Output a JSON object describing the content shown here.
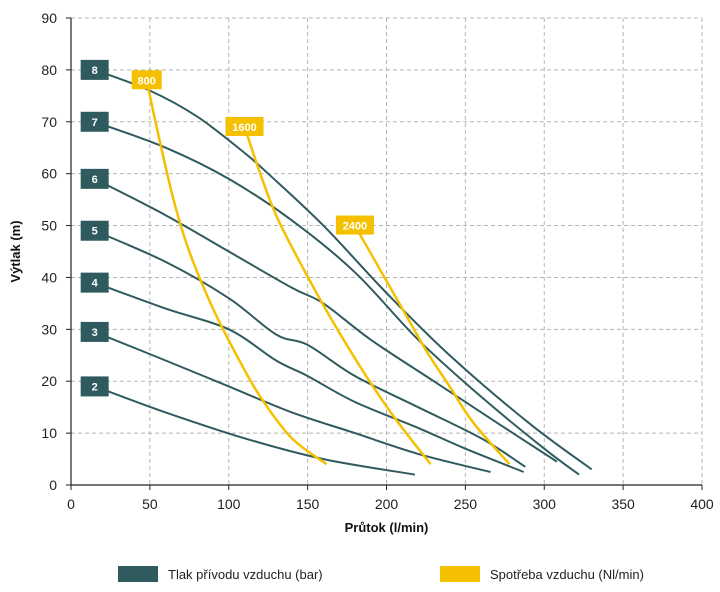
{
  "chart_data": {
    "type": "line",
    "xlabel": "Průtok (l/min)",
    "ylabel": "Výtlak (m)",
    "xlim": [
      0,
      400
    ],
    "ylim": [
      0,
      90
    ],
    "x_ticks": [
      0,
      50,
      100,
      150,
      200,
      250,
      300,
      350,
      400
    ],
    "y_ticks": [
      0,
      10,
      20,
      30,
      40,
      50,
      60,
      70,
      80,
      90
    ],
    "grid": "dashed",
    "colors": {
      "pressure": "#2f5b5e",
      "consumption": "#f5c000",
      "axis": "#222222",
      "grid": "#b5b5b5"
    },
    "legend": [
      {
        "label": "Tlak přívodu vzduchu (bar)",
        "color": "#2f5b5e"
      },
      {
        "label": "Spotřeba vzduchu (Nl/min)",
        "color": "#f5c000"
      }
    ],
    "pressure_series": [
      {
        "name": "2",
        "points": [
          [
            15,
            19
          ],
          [
            60,
            14
          ],
          [
            110,
            9
          ],
          [
            160,
            5
          ],
          [
            218,
            2
          ]
        ]
      },
      {
        "name": "3",
        "points": [
          [
            15,
            29.5
          ],
          [
            60,
            24
          ],
          [
            100,
            19
          ],
          [
            140,
            14
          ],
          [
            180,
            10
          ],
          [
            220,
            6
          ],
          [
            266,
            2.5
          ]
        ]
      },
      {
        "name": "4",
        "points": [
          [
            15,
            39
          ],
          [
            60,
            34
          ],
          [
            100,
            30
          ],
          [
            130,
            24
          ],
          [
            150,
            21
          ],
          [
            180,
            16
          ],
          [
            220,
            11
          ],
          [
            250,
            7
          ],
          [
            287,
            2.5
          ]
        ]
      },
      {
        "name": "5",
        "points": [
          [
            15,
            49
          ],
          [
            60,
            43
          ],
          [
            100,
            36
          ],
          [
            130,
            29
          ],
          [
            150,
            27
          ],
          [
            180,
            21
          ],
          [
            220,
            15
          ],
          [
            260,
            9
          ],
          [
            288,
            3.5
          ]
        ]
      },
      {
        "name": "6",
        "points": [
          [
            15,
            59
          ],
          [
            60,
            52
          ],
          [
            100,
            45
          ],
          [
            140,
            38
          ],
          [
            160,
            35
          ],
          [
            190,
            28
          ],
          [
            230,
            20
          ],
          [
            270,
            12
          ],
          [
            308,
            4.5
          ]
        ]
      },
      {
        "name": "7",
        "points": [
          [
            15,
            70
          ],
          [
            60,
            65
          ],
          [
            100,
            59
          ],
          [
            140,
            51
          ],
          [
            180,
            41
          ],
          [
            220,
            28
          ],
          [
            260,
            17
          ],
          [
            300,
            7
          ],
          [
            322,
            2
          ]
        ]
      },
      {
        "name": "8",
        "points": [
          [
            15,
            80
          ],
          [
            50,
            76
          ],
          [
            80,
            71
          ],
          [
            110,
            64
          ],
          [
            125,
            60
          ],
          [
            160,
            50
          ],
          [
            200,
            37
          ],
          [
            240,
            25
          ],
          [
            290,
            12
          ],
          [
            330,
            3
          ]
        ]
      }
    ],
    "consumption_series": [
      {
        "name": "800",
        "points": [
          [
            48,
            78
          ],
          [
            55,
            68
          ],
          [
            65,
            55
          ],
          [
            75,
            45
          ],
          [
            90,
            34
          ],
          [
            105,
            25
          ],
          [
            120,
            17
          ],
          [
            140,
            9
          ],
          [
            162,
            4
          ]
        ]
      },
      {
        "name": "1600",
        "points": [
          [
            110,
            69
          ],
          [
            120,
            60
          ],
          [
            130,
            52
          ],
          [
            145,
            43
          ],
          [
            165,
            32
          ],
          [
            185,
            22
          ],
          [
            205,
            13
          ],
          [
            228,
            4
          ]
        ]
      },
      {
        "name": "2400",
        "points": [
          [
            180,
            50
          ],
          [
            195,
            42
          ],
          [
            210,
            34
          ],
          [
            225,
            26
          ],
          [
            240,
            19
          ],
          [
            255,
            12
          ],
          [
            278,
            4
          ]
        ]
      }
    ]
  }
}
